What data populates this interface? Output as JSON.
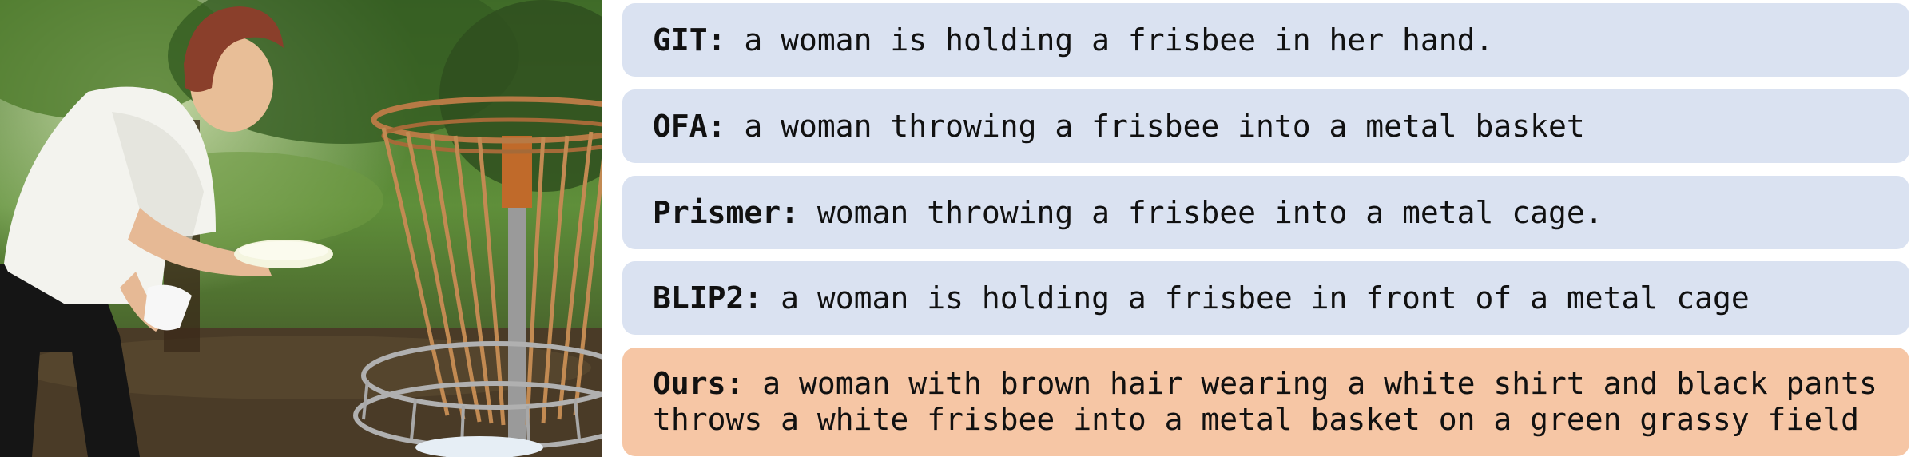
{
  "captions": [
    {
      "model": "GIT:",
      "text": "a woman is holding a frisbee in her hand.",
      "style": "blue"
    },
    {
      "model": "OFA:",
      "text": "a woman throwing a frisbee into a metal basket",
      "style": "blue"
    },
    {
      "model": "Prismer:",
      "text": "woman throwing a frisbee into a metal cage.",
      "style": "blue"
    },
    {
      "model": "BLIP2:",
      "text": "a woman is holding a frisbee in front of a metal cage",
      "style": "blue"
    },
    {
      "model": "Ours:",
      "text": "a woman with brown hair wearing a white shirt and black pants",
      "text2": "throws a white frisbee into a metal basket on a green grassy field",
      "style": "orange"
    }
  ],
  "colors": {
    "caption_blue": "#dae2f1",
    "caption_orange": "#f6c6a5",
    "text": "#111111"
  }
}
